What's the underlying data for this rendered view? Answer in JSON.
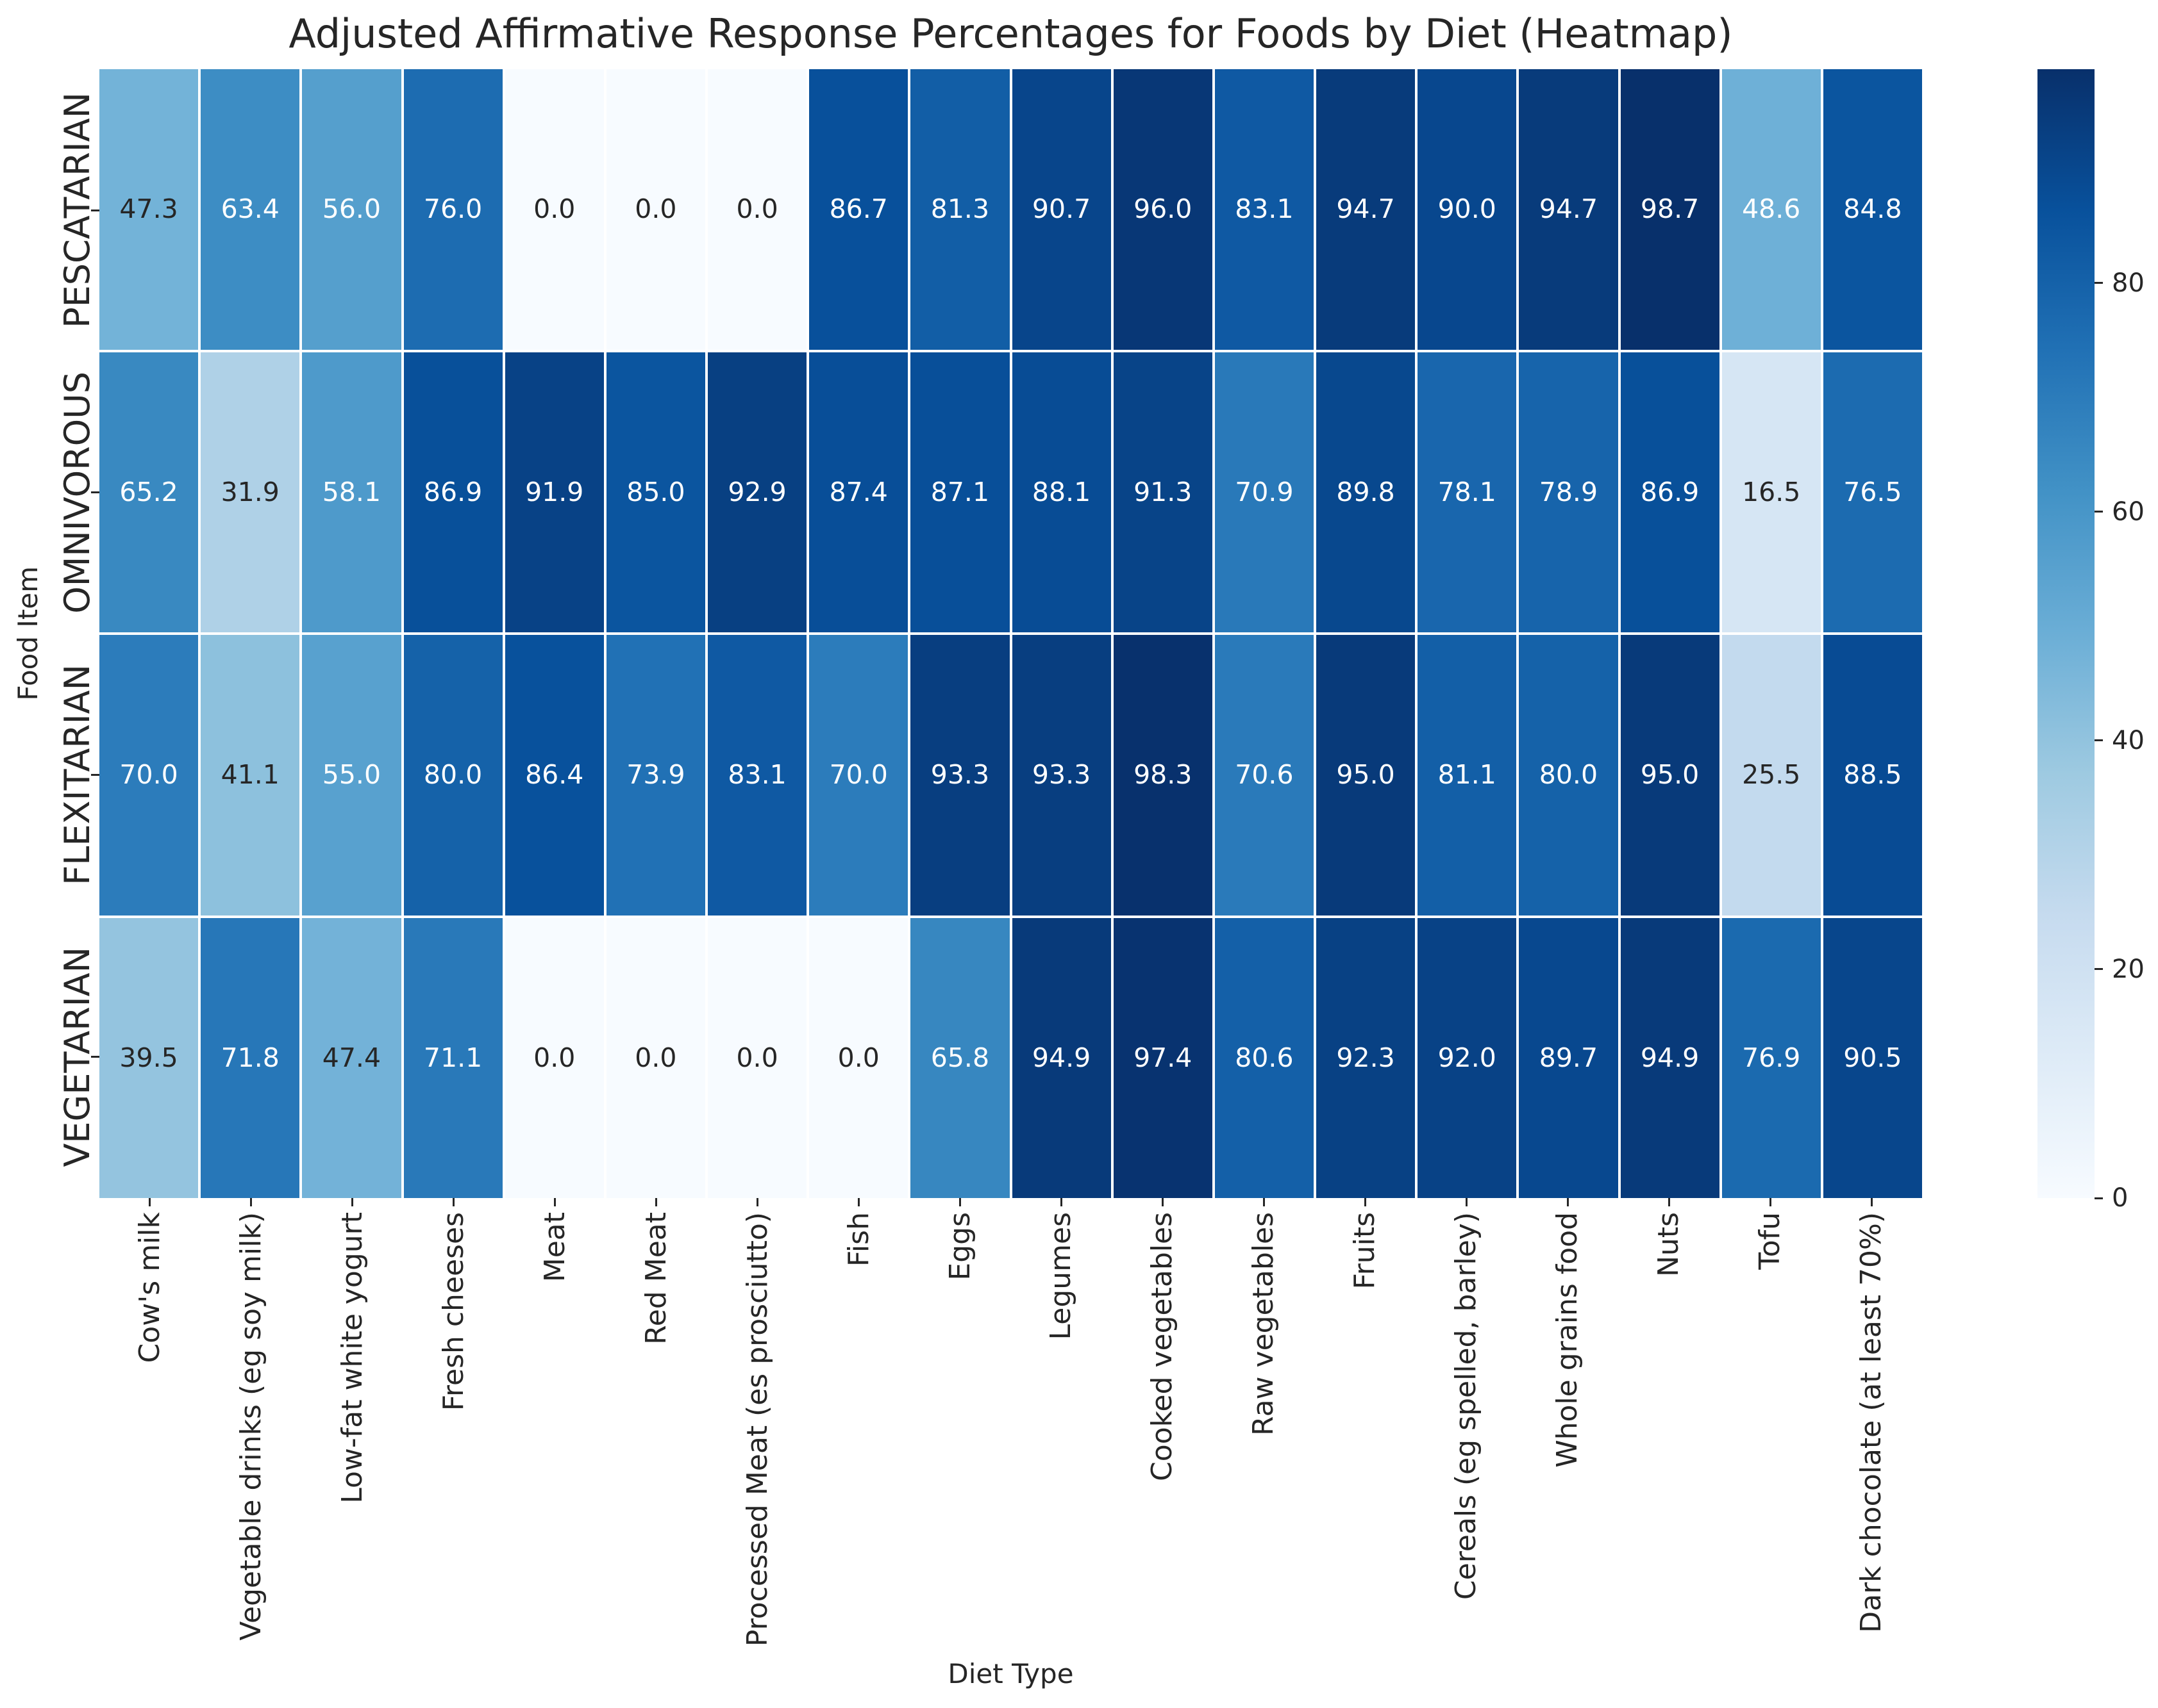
{
  "chart_data": {
    "type": "heatmap",
    "title": "Adjusted Affirmative Response Percentages for Foods by Diet (Heatmap)",
    "xlabel": "Diet Type",
    "ylabel": "Food Item",
    "rows": [
      "PESCATARIAN",
      "OMNIVOROUS",
      "FLEXITARIAN",
      "VEGETARIAN"
    ],
    "columns": [
      "Cow's milk",
      "Vegetable drinks (eg soy milk)",
      "Low-fat white yogurt",
      "Fresh cheeses",
      "Meat",
      "Red Meat",
      "Processed Meat (es prosciutto)",
      "Fish",
      "Eggs",
      "Legumes",
      "Cooked vegetables",
      "Raw vegetables",
      "Fruits",
      "Cereals (eg spelled, barley)",
      "Whole grains food",
      "Nuts",
      "Tofu",
      "Dark chocolate (at least 70%)"
    ],
    "values": [
      [
        47.3,
        63.4,
        56.0,
        76.0,
        0.0,
        0.0,
        0.0,
        86.7,
        81.3,
        90.7,
        96.0,
        83.1,
        94.7,
        90.0,
        94.7,
        98.7,
        48.6,
        84.8
      ],
      [
        65.2,
        31.9,
        58.1,
        86.9,
        91.9,
        85.0,
        92.9,
        87.4,
        87.1,
        88.1,
        91.3,
        70.9,
        89.8,
        78.1,
        78.9,
        86.9,
        16.5,
        76.5
      ],
      [
        70.0,
        41.1,
        55.0,
        80.0,
        86.4,
        73.9,
        83.1,
        70.0,
        93.3,
        93.3,
        98.3,
        70.6,
        95.0,
        81.1,
        80.0,
        95.0,
        25.5,
        88.5
      ],
      [
        39.5,
        71.8,
        47.4,
        71.1,
        0.0,
        0.0,
        0.0,
        0.0,
        65.8,
        94.9,
        97.4,
        80.6,
        92.3,
        92.0,
        89.7,
        94.9,
        76.9,
        90.5
      ]
    ],
    "value_format": "1-decimal",
    "vmin": 0,
    "vmax": 98.7,
    "colorbar_ticks": [
      0,
      20,
      40,
      60,
      80
    ],
    "colorbar_position": "right",
    "grid": false,
    "colormap": {
      "name": "Blues",
      "stops": [
        "#f7fbff",
        "#deebf7",
        "#c6dbef",
        "#9ecae1",
        "#6baed6",
        "#4292c6",
        "#2171b5",
        "#08519c",
        "#08306b"
      ]
    },
    "annotation_color_dark": "#262626",
    "annotation_color_light": "#ffffff",
    "cell_line_color": "#ffffff"
  }
}
